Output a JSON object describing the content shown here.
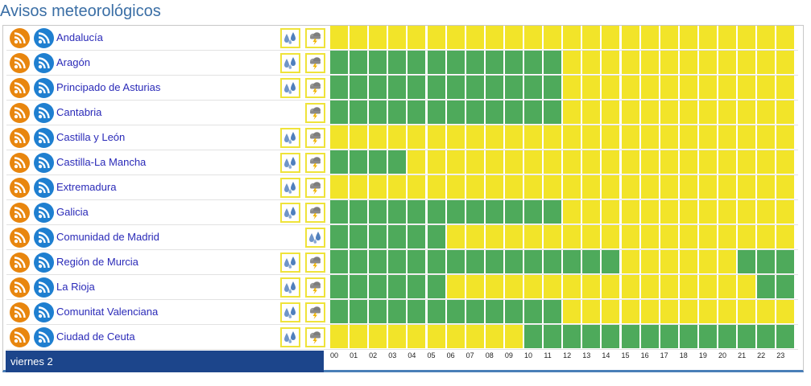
{
  "page": {
    "title": "Avisos meteorológicos"
  },
  "day_label": "viernes 2",
  "hours": [
    "00",
    "01",
    "02",
    "03",
    "04",
    "05",
    "06",
    "07",
    "08",
    "09",
    "10",
    "11",
    "12",
    "13",
    "14",
    "15",
    "16",
    "17",
    "18",
    "19",
    "20",
    "21",
    "22",
    "23"
  ],
  "colors": {
    "yellow": "#f2e429",
    "green": "#4eaa5b",
    "rss_orange": "#e8860e",
    "rss_blue": "#1f7fd0",
    "day_bar": "#1c458b"
  },
  "regions": [
    {
      "name": "Andalucía",
      "icons": [
        "rain-icon",
        "storm-icon"
      ],
      "levels": "YYYYYYYYYYYYYYYYYYYYYYYY"
    },
    {
      "name": "Aragón",
      "icons": [
        "rain-icon",
        "storm-icon"
      ],
      "levels": "GGGGGGGGGGGGYYYYYYYYYYYY"
    },
    {
      "name": "Principado de Asturias",
      "icons": [
        "rain-icon",
        "storm-icon"
      ],
      "levels": "GGGGGGGGGGGGYYYYYYYYYYYY"
    },
    {
      "name": "Cantabria",
      "icons": [
        null,
        "storm-icon"
      ],
      "levels": "GGGGGGGGGGGGYYYYYYYYYYYY"
    },
    {
      "name": "Castilla y León",
      "icons": [
        "rain-icon",
        "storm-icon"
      ],
      "levels": "YYYYYYYYYYYYYYYYYYYYYYYY"
    },
    {
      "name": "Castilla-La Mancha",
      "icons": [
        "rain-icon",
        "storm-icon"
      ],
      "levels": "GGGGYYYYYYYYYYYYYYYYYYYY"
    },
    {
      "name": "Extremadura",
      "icons": [
        "rain-icon",
        "storm-icon"
      ],
      "levels": "YYYYYYYYYYYYYYYYYYYYYYYY"
    },
    {
      "name": "Galicia",
      "icons": [
        "rain-icon",
        "storm-icon"
      ],
      "levels": "GGGGGGGGGGGGYYYYYYYYYYYY"
    },
    {
      "name": "Comunidad de Madrid",
      "icons": [
        null,
        "rain-icon"
      ],
      "levels": "GGGGGGYYYYYYYYYYYYYYYYYY"
    },
    {
      "name": "Región de Murcia",
      "icons": [
        "rain-icon",
        "storm-icon"
      ],
      "levels": "GGGGGGGGGGGGGGGYYYYYYGGG"
    },
    {
      "name": "La Rioja",
      "icons": [
        "rain-icon",
        "storm-icon"
      ],
      "levels": "GGGGGGYYYYYYYYYYYYYYYYGG"
    },
    {
      "name": "Comunitat Valenciana",
      "icons": [
        "rain-icon",
        "storm-icon"
      ],
      "levels": "GGGGGGGGGGGGYYYYYYYYYYYY"
    },
    {
      "name": "Ciudad de Ceuta",
      "icons": [
        "rain-icon",
        "storm-icon"
      ],
      "levels": "YYYYYYYYYYGGGGGGGGGGGGGG"
    }
  ]
}
